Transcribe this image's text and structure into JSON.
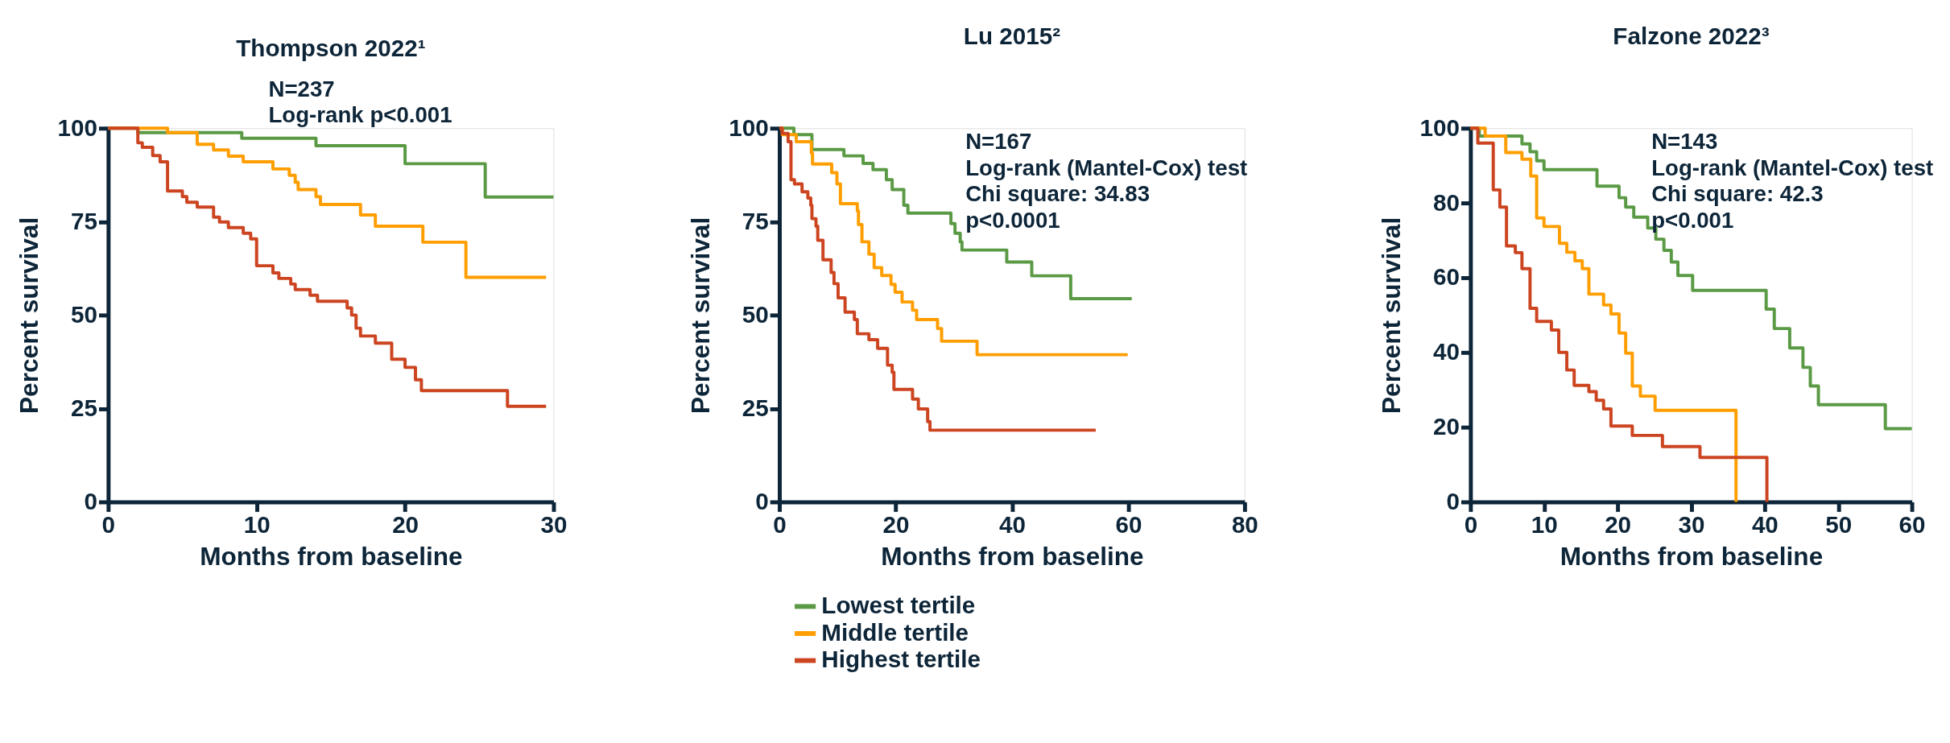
{
  "chart_data": [
    {
      "type": "step",
      "title": "Thompson 2022¹",
      "xlabel": "Months from baseline",
      "ylabel": "Percent survival",
      "annotations": [
        "N=237",
        "Log-rank p<0.001"
      ],
      "xlim": [
        0,
        30
      ],
      "xticks": [
        0,
        10,
        20,
        30
      ],
      "ylim": [
        0,
        100
      ],
      "yticks": [
        0,
        25,
        50,
        75,
        100
      ],
      "legend": "bottom",
      "series": [
        {
          "name": "Lowest tertile",
          "color": "#5b9a45",
          "x": [
            0,
            2,
            9,
            14,
            20,
            25.4,
            30
          ],
          "values": [
            100,
            98.8,
            97.3,
            95.3,
            90.5,
            81.6,
            81.6
          ]
        },
        {
          "name": "Middle tertile",
          "color": "#ff9e00",
          "x": [
            0,
            4,
            6,
            7.1,
            8.1,
            9.1,
            11.1,
            12.2,
            12.6,
            12.8,
            14,
            14.3,
            17,
            18,
            21.2,
            24.1,
            29.5
          ],
          "values": [
            100,
            98.8,
            95.7,
            94.2,
            92.5,
            91,
            89.1,
            87.4,
            85.5,
            83.6,
            81.7,
            79.6,
            76.8,
            73.8,
            69.5,
            60.1,
            60.1
          ]
        },
        {
          "name": "Highest tertile",
          "color": "#cc4420",
          "x": [
            0,
            2,
            2.3,
            3,
            3.5,
            4,
            5,
            5.3,
            6,
            7.1,
            7.5,
            8.1,
            9.1,
            9.6,
            10,
            11.1,
            11.5,
            12.3,
            12.6,
            13.6,
            14.1,
            16.1,
            16.4,
            16.7,
            17,
            18,
            19.1,
            20,
            20.7,
            21.1,
            26.9,
            29.5
          ],
          "values": [
            100,
            96.1,
            94.9,
            92.7,
            91,
            83.2,
            81.7,
            80.2,
            78.9,
            76.2,
            74.9,
            73.4,
            71.9,
            70.4,
            63.2,
            61.3,
            59.8,
            58.3,
            56.8,
            55.3,
            53.7,
            51.9,
            50,
            46.5,
            44.4,
            42.5,
            38.2,
            36,
            32.7,
            29.8,
            25.6,
            25.6
          ]
        }
      ]
    },
    {
      "type": "step",
      "title": "Lu 2015²",
      "xlabel": "Months from baseline",
      "ylabel": "Percent survival",
      "annotations": [
        "N=167",
        "Log-rank (Mantel-Cox) test",
        "Chi square: 34.83",
        "p<0.0001"
      ],
      "xlim": [
        0,
        80
      ],
      "xticks": [
        0,
        20,
        40,
        60,
        80
      ],
      "ylim": [
        0,
        100
      ],
      "yticks": [
        0,
        25,
        50,
        75,
        100
      ],
      "legend": "bottom",
      "series": [
        {
          "name": "Lowest tertile",
          "color": "#5b9a45",
          "x": [
            0,
            2.5,
            5.6,
            11.1,
            14.4,
            16.1,
            18.4,
            19.4,
            21.4,
            22.1,
            29.5,
            30.2,
            31.1,
            31.4,
            39.1,
            43.4,
            50.1,
            60.6
          ],
          "values": [
            100,
            98.3,
            94.3,
            92.6,
            90.6,
            88.9,
            86.2,
            83.6,
            79.4,
            77.3,
            74.5,
            71.9,
            69.6,
            67.4,
            64.2,
            60.5,
            54.4,
            54.4
          ]
        },
        {
          "name": "Middle tertile",
          "color": "#ff9e00",
          "x": [
            0,
            0.5,
            2.9,
            5.5,
            5.7,
            9,
            9.9,
            10.5,
            13.4,
            13.6,
            14.2,
            15.4,
            16.3,
            17.6,
            19.2,
            19.9,
            21.1,
            22.9,
            23.6,
            27.2,
            27.9,
            34,
            59.9
          ],
          "values": [
            100,
            98.3,
            96.4,
            93.4,
            90.4,
            88.1,
            85.1,
            79.8,
            77.9,
            74.2,
            69.6,
            66.3,
            62.7,
            60.6,
            58.2,
            56.1,
            53.5,
            51.3,
            48.8,
            46.4,
            43,
            39.4,
            39.4
          ]
        },
        {
          "name": "Highest tertile",
          "color": "#cc4420",
          "x": [
            0,
            0.5,
            1.5,
            2,
            2.6,
            3.9,
            4.9,
            5.4,
            5.6,
            6.3,
            6.6,
            7.5,
            8.9,
            9.4,
            10.1,
            11.3,
            12.9,
            13.4,
            15.4,
            16.9,
            18.6,
            19.4,
            19.7,
            22.9,
            23.9,
            25.5,
            25.9,
            54.4
          ],
          "values": [
            100,
            98.6,
            96.4,
            86.2,
            85.1,
            83,
            81.3,
            79.4,
            75.8,
            73.8,
            70,
            64.8,
            61.4,
            58.4,
            54.6,
            50.8,
            48.8,
            45,
            43.4,
            41.1,
            36.6,
            34.7,
            30.1,
            27.5,
            24.9,
            21.5,
            19.2,
            19.2
          ]
        }
      ]
    },
    {
      "type": "step",
      "title": "Falzone 2022³",
      "xlabel": "Months from baseline",
      "ylabel": "Percent survival",
      "annotations": [
        "N=143",
        "Log-rank (Mantel-Cox) test",
        "Chi square: 42.3",
        "p<0.001"
      ],
      "xlim": [
        0,
        60
      ],
      "xticks": [
        0,
        10,
        20,
        30,
        40,
        50,
        60
      ],
      "ylim": [
        0,
        100
      ],
      "yticks": [
        0,
        20,
        40,
        60,
        80,
        100
      ],
      "legend": "bottom",
      "series": [
        {
          "name": "Lowest tertile",
          "color": "#5b9a45",
          "x": [
            0,
            1.2,
            7,
            8.1,
            9,
            10,
            17.2,
            20.2,
            21.1,
            22.2,
            24.1,
            25.2,
            26.3,
            27.3,
            28.2,
            30.2,
            40.2,
            41.3,
            43.4,
            45.2,
            46.2,
            47.3,
            56.4,
            60
          ],
          "values": [
            100,
            97.9,
            95.8,
            93.7,
            91.3,
            88.9,
            84.5,
            81.4,
            78.9,
            76.2,
            73.3,
            70.3,
            67.3,
            64.2,
            60.6,
            56.6,
            51.6,
            46.4,
            41.2,
            36,
            31,
            26,
            19.6,
            19.6
          ]
        },
        {
          "name": "Middle tertile",
          "color": "#ff9e00",
          "x": [
            0,
            2,
            4.8,
            7,
            8.2,
            9,
            10,
            12.1,
            13.1,
            14.2,
            15.2,
            16.1,
            18.1,
            19.1,
            20.2,
            21.1,
            22,
            23.1,
            25.1,
            36.1
          ],
          "values": [
            100,
            97.9,
            93.5,
            91.7,
            87.2,
            76,
            73.7,
            69.2,
            66.8,
            64.5,
            62.4,
            55.6,
            52.7,
            50.3,
            45.2,
            39.8,
            31,
            28.3,
            24.5,
            0
          ]
        },
        {
          "name": "Highest tertile",
          "color": "#cc4420",
          "x": [
            0,
            1,
            3.1,
            4,
            4.9,
            6.1,
            7,
            8.1,
            9,
            11,
            12,
            13.1,
            14.1,
            16.1,
            17.1,
            18.1,
            19.1,
            22,
            26.1,
            31.2,
            40.3
          ],
          "values": [
            100,
            96,
            83.5,
            78.9,
            68.5,
            66.7,
            62.4,
            51.8,
            48.3,
            46,
            40,
            35.3,
            31.2,
            29.5,
            27.2,
            24.9,
            20.3,
            17.8,
            14.8,
            11.9,
            0
          ]
        }
      ]
    }
  ]
}
